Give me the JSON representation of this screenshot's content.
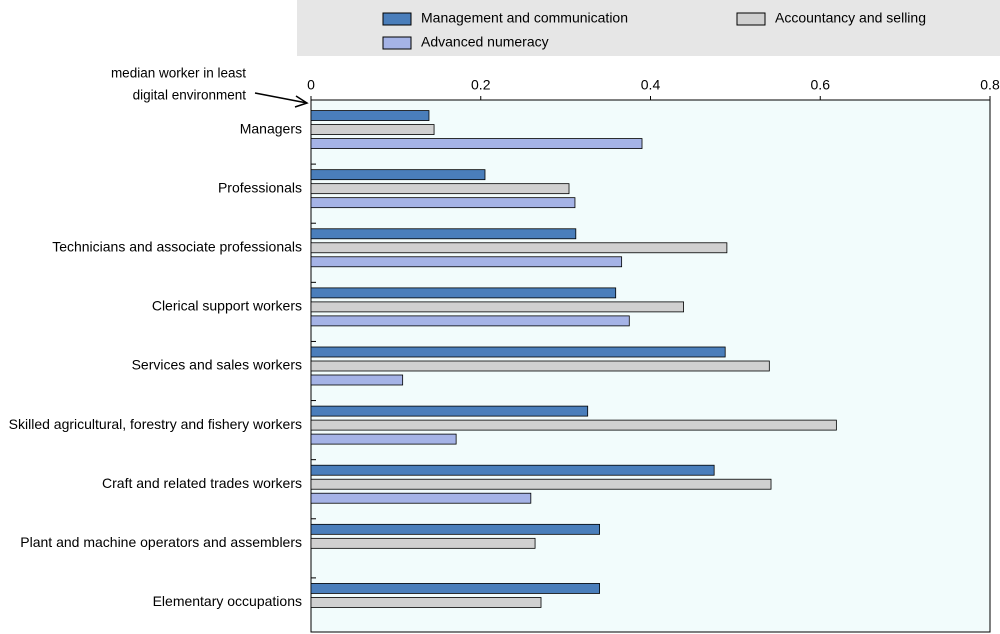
{
  "chart_data": {
    "type": "hbar",
    "annotation": [
      "median worker in least",
      "digital environment"
    ],
    "categories": [
      "Managers",
      "Professionals",
      "Technicians and associate professionals",
      "Clerical support workers",
      "Services and sales workers",
      "Skilled agricultural, forestry and fishery workers",
      "Craft and related trades workers",
      "Plant and machine operators and assemblers",
      "Elementary occupations"
    ],
    "series": [
      {
        "name": "Management and communication",
        "color": "#4a7ebb",
        "values": [
          0.139,
          0.205,
          0.312,
          0.359,
          0.488,
          0.326,
          0.475,
          0.34,
          0.34
        ]
      },
      {
        "name": "Accountancy and selling",
        "color": "#d0d0d0",
        "values": [
          0.145,
          0.304,
          0.49,
          0.439,
          0.54,
          0.619,
          0.542,
          0.264,
          0.271
        ]
      },
      {
        "name": "Advanced numeracy",
        "color": "#a5b3e6",
        "values": [
          0.39,
          0.311,
          0.366,
          0.375,
          0.108,
          0.171,
          0.259,
          null,
          null
        ]
      }
    ],
    "xlim": [
      0,
      0.8
    ],
    "xticks": [
      0,
      0.2,
      0.4,
      0.6,
      0.8
    ]
  }
}
